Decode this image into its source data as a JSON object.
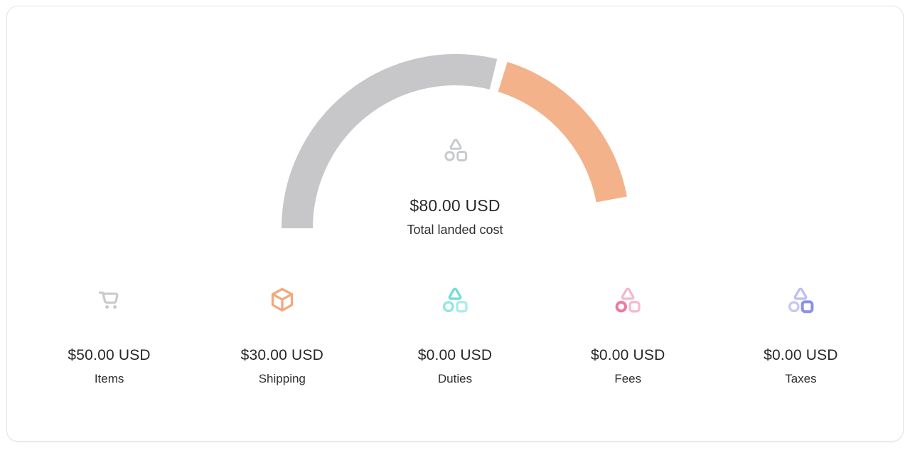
{
  "chart_data": {
    "type": "pie",
    "variant": "semicircle-gauge-donut",
    "title": "Total landed cost",
    "categories": [
      "Items",
      "Shipping",
      "Duties",
      "Fees",
      "Taxes"
    ],
    "values": [
      50,
      30,
      0,
      0,
      0
    ],
    "unit": "USD",
    "formatted_values": [
      "$50.00 USD",
      "$30.00 USD",
      "$0.00 USD",
      "$0.00 USD",
      "$0.00 USD"
    ],
    "center_value": "$80.00 USD",
    "center_label": "Total landed cost",
    "colors": [
      "#c7c7c9",
      "#f3b28a",
      "#6edfd7",
      "#ed7aa0",
      "#8a90e8"
    ],
    "geometry": {
      "start_angle_deg": 180,
      "end_angle_deg": 0,
      "segment_gap_deg": 3.5
    },
    "legend_position": "bottom-row"
  },
  "icons": {
    "center": {
      "name": "shapes-icon",
      "color": "#c7c9cd"
    },
    "items": {
      "name": "cart-icon",
      "color": "#c9cacc"
    },
    "shipping": {
      "name": "package-icon",
      "color": "#f3a97b"
    },
    "duties": {
      "name": "shapes-icon",
      "triangle": "#6edfd7",
      "circle": "#8fe7e2",
      "square": "#a8ece8"
    },
    "fees": {
      "name": "shapes-icon",
      "triangle": "#f6b7cb",
      "circle": "#ed7aa0",
      "square": "#f6bacd"
    },
    "taxes": {
      "name": "shapes-icon",
      "triangle": "#bbbff2",
      "circle": "#c4c8f4",
      "square": "#8a90e8"
    }
  }
}
